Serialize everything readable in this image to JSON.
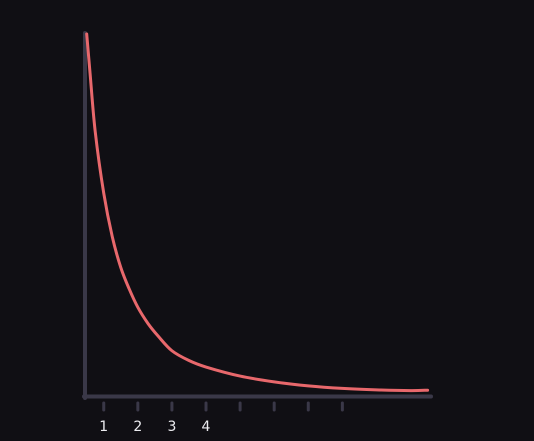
{
  "chart_data": {
    "type": "line",
    "x_tick_labels": [
      "1",
      "2",
      "3",
      "4",
      "",
      "",
      "",
      ""
    ],
    "xlim": [
      0.45,
      10.6
    ],
    "ylim": [
      0,
      10
    ],
    "grid": false,
    "series": [
      {
        "color": "#e8686c",
        "points": [
          [
            0.5,
            10.0
          ],
          [
            0.6,
            8.9
          ],
          [
            0.75,
            7.3
          ],
          [
            1.0,
            5.6
          ],
          [
            1.25,
            4.4
          ],
          [
            1.5,
            3.55
          ],
          [
            1.75,
            2.95
          ],
          [
            2.0,
            2.45
          ],
          [
            2.3,
            2.0
          ],
          [
            2.6,
            1.65
          ],
          [
            3.0,
            1.25
          ],
          [
            3.5,
            0.98
          ],
          [
            4.0,
            0.8
          ],
          [
            5.0,
            0.55
          ],
          [
            6.0,
            0.39
          ],
          [
            7.0,
            0.28
          ],
          [
            8.0,
            0.21
          ],
          [
            9.0,
            0.17
          ],
          [
            10.0,
            0.15
          ],
          [
            10.5,
            0.16
          ]
        ]
      }
    ]
  },
  "colors": {
    "background": "#100f14",
    "axis": "#3a3848",
    "tick_text": "#ececf0"
  }
}
